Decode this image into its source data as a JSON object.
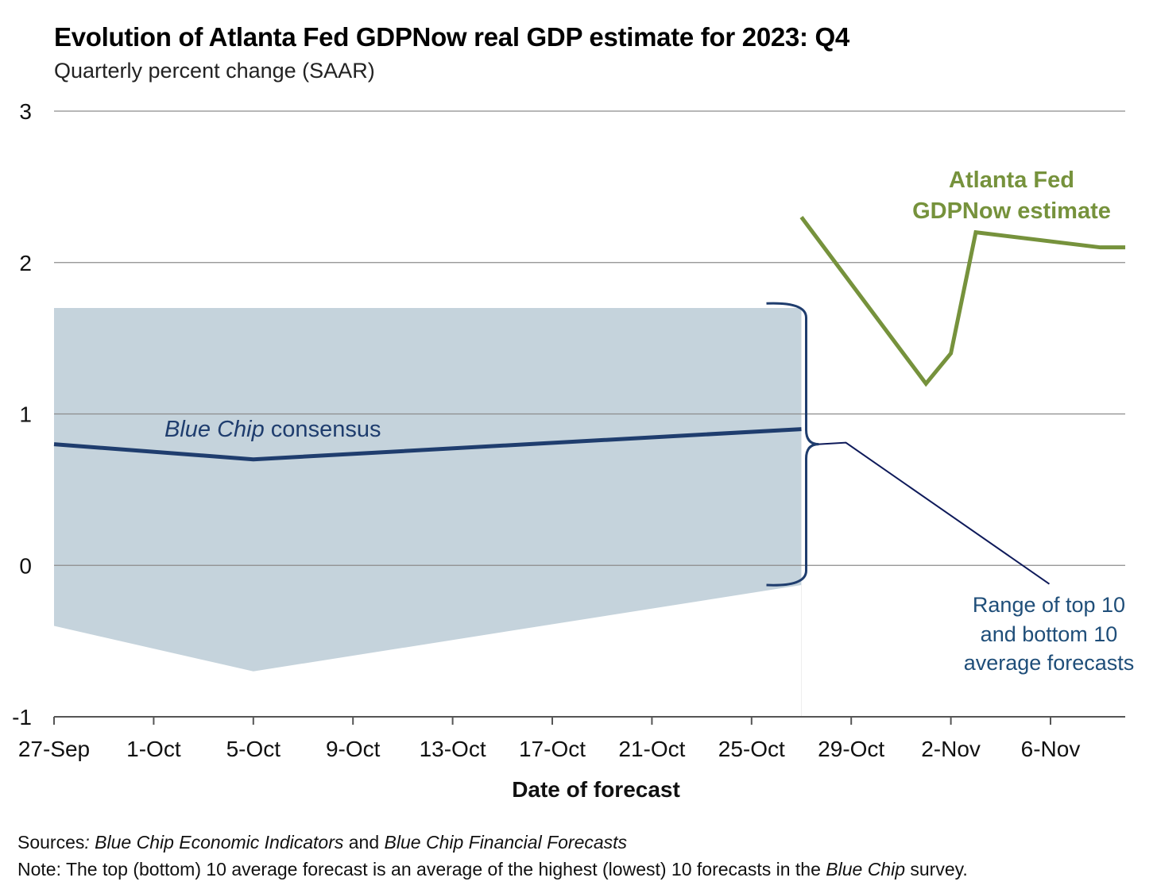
{
  "header": {
    "title": "Evolution of Atlanta Fed GDPNow real GDP estimate for 2023: Q4",
    "subtitle": "Quarterly percent change (SAAR)"
  },
  "footer": {
    "sources_label": "Sources",
    "sources_colon": ":",
    "sources_part1": "Blue Chip Economic Indicators",
    "sources_and": " and ",
    "sources_part2": "Blue Chip Financial Forecasts",
    "note_label": "Note:",
    "note_part1": " The top (bottom) 10 average forecast is an average of the highest (lowest) 10 forecasts in the ",
    "note_italic": "Blue Chip",
    "note_part2": " survey."
  },
  "chart_data": {
    "type": "line",
    "title": "Evolution of Atlanta Fed GDPNow real GDP estimate for 2023: Q4",
    "subtitle": "Quarterly percent change (SAAR)",
    "xlabel": "Date of forecast",
    "ylabel": "",
    "x_tick_labels": [
      "27-Sep",
      "1-Oct",
      "5-Oct",
      "9-Oct",
      "13-Oct",
      "17-Oct",
      "21-Oct",
      "25-Oct",
      "29-Oct",
      "2-Nov",
      "6-Nov"
    ],
    "x_ticks": [
      "2023-09-27",
      "2023-10-01",
      "2023-10-05",
      "2023-10-09",
      "2023-10-13",
      "2023-10-17",
      "2023-10-21",
      "2023-10-25",
      "2023-10-29",
      "2023-11-02",
      "2023-11-06"
    ],
    "xlim": [
      "2023-09-27",
      "2023-11-09"
    ],
    "ylim": [
      -1,
      3
    ],
    "y_ticks": [
      -1,
      0,
      1,
      2,
      3
    ],
    "grid": "horizontal",
    "series": [
      {
        "name": "Atlanta Fed GDPNow estimate",
        "color": "#76923c",
        "points": [
          {
            "x": "2023-10-27",
            "y": 2.3
          },
          {
            "x": "2023-11-01",
            "y": 1.2
          },
          {
            "x": "2023-11-02",
            "y": 1.4
          },
          {
            "x": "2023-11-03",
            "y": 2.2
          },
          {
            "x": "2023-11-08",
            "y": 2.1
          },
          {
            "x": "2023-11-09",
            "y": 2.1
          }
        ]
      },
      {
        "name": "Blue Chip consensus",
        "color": "#1f3d6e",
        "points": [
          {
            "x": "2023-09-27",
            "y": 0.8
          },
          {
            "x": "2023-10-05",
            "y": 0.7
          },
          {
            "x": "2023-10-27",
            "y": 0.9
          }
        ]
      }
    ],
    "range_band": {
      "name": "Range of top 10 and bottom 10 average forecasts",
      "color": "#c5d3dc",
      "top": [
        {
          "x": "2023-09-27",
          "y": 1.7
        },
        {
          "x": "2023-10-27",
          "y": 1.7
        }
      ],
      "bottom": [
        {
          "x": "2023-09-27",
          "y": -0.4
        },
        {
          "x": "2023-10-05",
          "y": -0.7
        },
        {
          "x": "2023-10-27",
          "y": -0.13
        }
      ]
    },
    "annotations": {
      "gdpnow_line1": "Atlanta Fed",
      "gdpnow_line2": "GDPNow estimate",
      "consensus_italic": "Blue Chip",
      "consensus_rest": " consensus",
      "range_line1": "Range of top 10",
      "range_line2": "and bottom 10",
      "range_line3": "average forecasts"
    },
    "colors": {
      "gdpnow": "#76923c",
      "consensus": "#1f3d6e",
      "band": "#c5d3dc",
      "annotation_text": "#1f4e79",
      "grid": "#8c8c8c"
    }
  }
}
